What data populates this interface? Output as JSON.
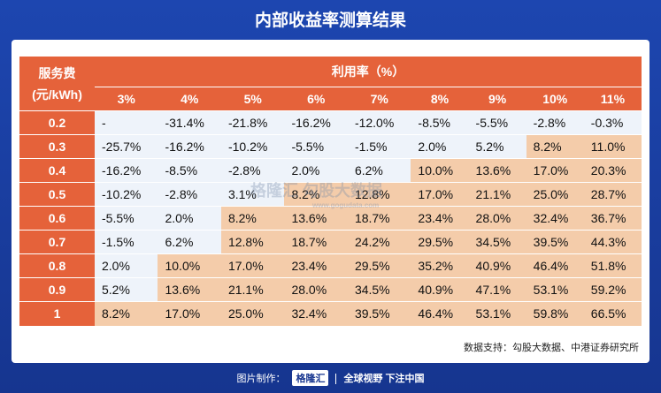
{
  "header": {
    "title": "内部收益率测算结果"
  },
  "table": {
    "corner": [
      "服务费",
      "(元/kWh)"
    ],
    "group_header": "利用率（%）",
    "columns": [
      "3%",
      "4%",
      "5%",
      "6%",
      "7%",
      "8%",
      "9%",
      "10%",
      "11%"
    ],
    "colors": {
      "header": "#e5623a",
      "plain": "#eef3fa",
      "shaded": "#f4ccaa"
    },
    "rows": [
      {
        "label": "0.2",
        "shaded_from": 9,
        "cells": [
          "-",
          "-31.4%",
          "-21.8%",
          "-16.2%",
          "-12.0%",
          "-8.5%",
          "-5.5%",
          "-2.8%",
          "-0.3%"
        ]
      },
      {
        "label": "0.3",
        "shaded_from": 7,
        "cells": [
          "-25.7%",
          "-16.2%",
          "-10.2%",
          "-5.5%",
          "-1.5%",
          "2.0%",
          "5.2%",
          "8.2%",
          "11.0%"
        ]
      },
      {
        "label": "0.4",
        "shaded_from": 5,
        "cells": [
          "-16.2%",
          "-8.5%",
          "-2.8%",
          "2.0%",
          "6.2%",
          "10.0%",
          "13.6%",
          "17.0%",
          "20.3%"
        ]
      },
      {
        "label": "0.5",
        "shaded_from": 3,
        "cells": [
          "-10.2%",
          "-2.8%",
          "3.1%",
          "8.2%",
          "12.8%",
          "17.0%",
          "21.1%",
          "25.0%",
          "28.7%"
        ]
      },
      {
        "label": "0.6",
        "shaded_from": 2,
        "cells": [
          "-5.5%",
          "2.0%",
          "8.2%",
          "13.6%",
          "18.7%",
          "23.4%",
          "28.0%",
          "32.4%",
          "36.7%"
        ]
      },
      {
        "label": "0.7",
        "shaded_from": 2,
        "cells": [
          "-1.5%",
          "6.2%",
          "12.8%",
          "18.7%",
          "24.2%",
          "29.5%",
          "34.5%",
          "39.5%",
          "44.3%"
        ]
      },
      {
        "label": "0.8",
        "shaded_from": 1,
        "cells": [
          "2.0%",
          "10.0%",
          "17.0%",
          "23.4%",
          "29.5%",
          "35.2%",
          "40.9%",
          "46.4%",
          "51.8%"
        ]
      },
      {
        "label": "0.9",
        "shaded_from": 1,
        "cells": [
          "5.2%",
          "13.6%",
          "21.1%",
          "28.0%",
          "34.5%",
          "40.9%",
          "47.1%",
          "53.1%",
          "59.2%"
        ]
      },
      {
        "label": "1",
        "shaded_from": 0,
        "cells": [
          "8.2%",
          "17.0%",
          "25.0%",
          "32.4%",
          "39.5%",
          "46.4%",
          "53.1%",
          "59.8%",
          "66.5%"
        ]
      }
    ]
  },
  "watermark": {
    "brand": "格隆汇",
    "product": "勾股大数据",
    "url": "www.gogudata.com"
  },
  "source": "数据支持：勾股大数据、中港证券研究所",
  "footer": {
    "made_by": "图片制作：",
    "logo": "格隆汇",
    "slogan": "全球视野 下注中国"
  }
}
